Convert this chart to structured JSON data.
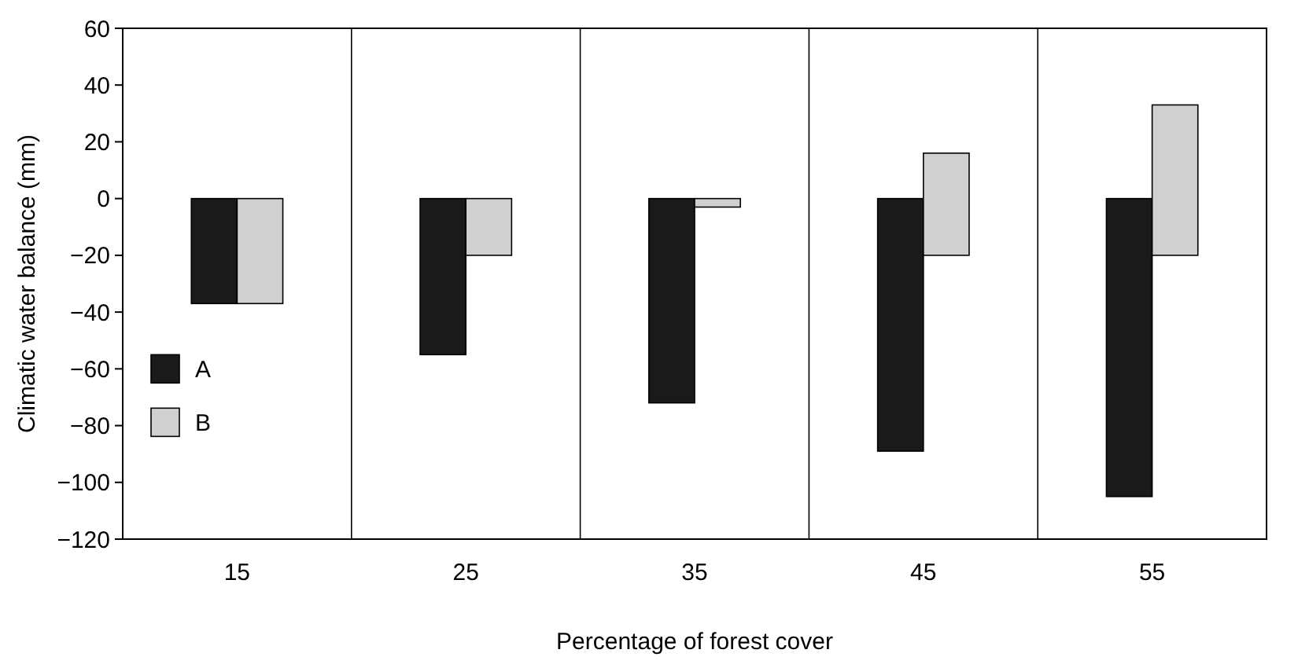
{
  "chart_data": {
    "type": "bar",
    "xlabel": "Percentage of forest cover",
    "ylabel": "Climatic water balance (mm)",
    "categories": [
      "15",
      "25",
      "35",
      "45",
      "55"
    ],
    "series": [
      {
        "name": "A",
        "color": "#1a1a1a",
        "values": [
          -37,
          -55,
          -72,
          -89,
          -105
        ]
      },
      {
        "name": "B",
        "color": "#d0d0d0",
        "values": [
          -37,
          -20,
          -3,
          36,
          53
        ],
        "base": [
          0,
          0,
          0,
          -20,
          -20
        ]
      }
    ],
    "ylim": [
      -120,
      60
    ],
    "yticks": [
      -120,
      -100,
      -80,
      -60,
      -40,
      -20,
      0,
      20,
      40,
      60
    ],
    "grid": "x",
    "legend": "left"
  }
}
